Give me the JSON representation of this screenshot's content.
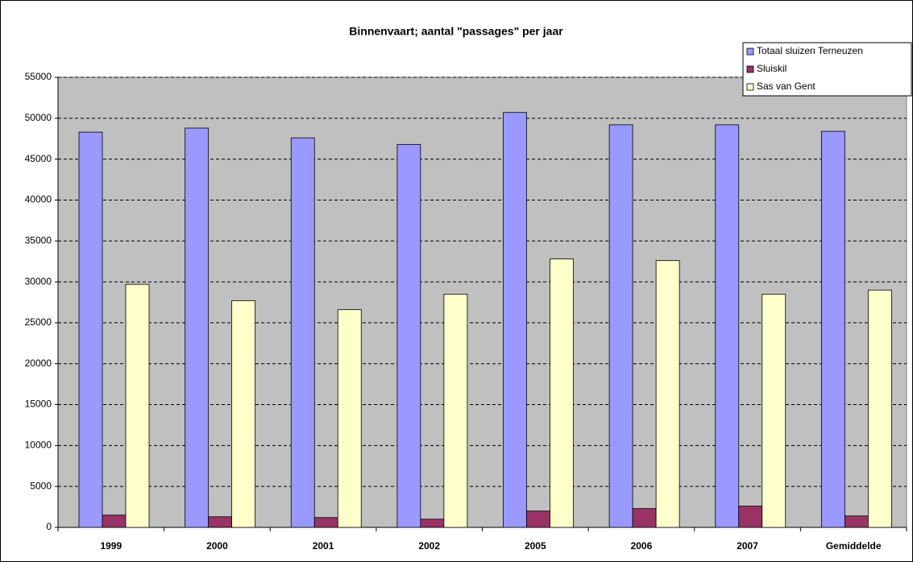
{
  "chart_data": {
    "type": "bar",
    "title": "Binnenvaart; aantal \"passages\" per jaar",
    "categories": [
      "1999",
      "2000",
      "2001",
      "2002",
      "2005",
      "2006",
      "2007",
      "Gemiddelde"
    ],
    "series": [
      {
        "name": "Totaal sluizen Terneuzen",
        "color": "#9999ff",
        "values": [
          48300,
          48800,
          47600,
          46800,
          50700,
          49200,
          49200,
          48400
        ]
      },
      {
        "name": "Sluiskil",
        "color": "#993366",
        "values": [
          1500,
          1300,
          1200,
          1000,
          2000,
          2300,
          2600,
          1400
        ]
      },
      {
        "name": "Sas van Gent",
        "color": "#ffffcc",
        "values": [
          29700,
          27700,
          26600,
          28500,
          32800,
          32600,
          28500,
          29000
        ]
      }
    ],
    "ylim": [
      0,
      55000
    ],
    "yticks": [
      0,
      5000,
      10000,
      15000,
      20000,
      25000,
      30000,
      35000,
      40000,
      45000,
      50000,
      55000
    ],
    "grid": true,
    "legend": "top-right"
  }
}
